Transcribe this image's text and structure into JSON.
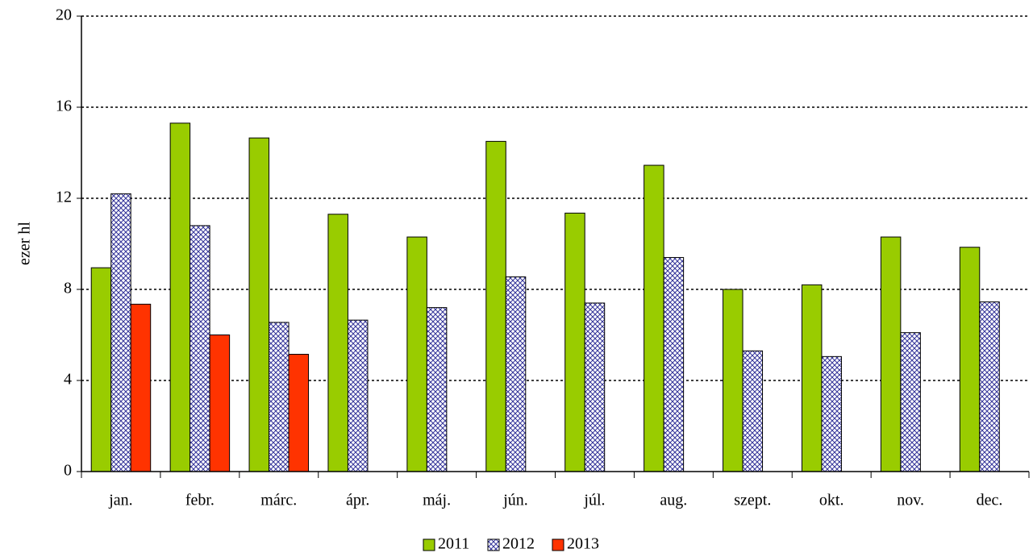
{
  "chart_data": {
    "type": "bar",
    "y_label": "ezer hl",
    "categories": [
      "jan.",
      "febr.",
      "márc.",
      "ápr.",
      "máj.",
      "jún.",
      "júl.",
      "aug.",
      "szept.",
      "okt.",
      "nov.",
      "dec."
    ],
    "series": [
      {
        "name": "2011",
        "color": "#99cc00",
        "pattern": "solid",
        "values": [
          8.95,
          15.3,
          14.65,
          11.3,
          10.3,
          14.5,
          11.35,
          13.45,
          8.0,
          8.2,
          10.3,
          9.85
        ]
      },
      {
        "name": "2012",
        "color": "#333399",
        "pattern": "crosshatch",
        "values": [
          12.2,
          10.8,
          6.55,
          6.65,
          7.2,
          8.55,
          7.4,
          9.4,
          5.3,
          5.05,
          6.1,
          7.45
        ]
      },
      {
        "name": "2013",
        "color": "#ff3300",
        "pattern": "solid",
        "values": [
          7.35,
          6.0,
          5.15,
          null,
          null,
          null,
          null,
          null,
          null,
          null,
          null,
          null
        ]
      }
    ],
    "ylim": [
      0,
      20
    ],
    "yticks": [
      0,
      4,
      8,
      12,
      16,
      20
    ],
    "grid": true,
    "legend": "bottom"
  }
}
